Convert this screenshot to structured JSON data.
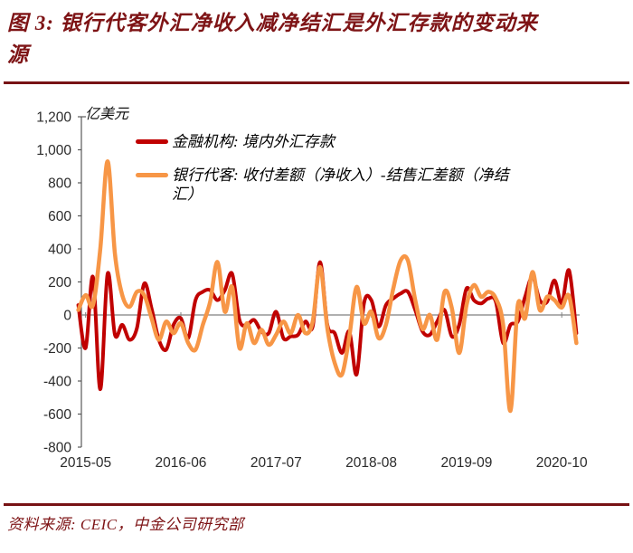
{
  "header": {
    "title": "图 3: 银行代客外汇净收入减净结汇是外汇存款的变动来源"
  },
  "footer": {
    "source": "资料来源: CEIC，中金公司研究部"
  },
  "chart_data": {
    "type": "line",
    "unit_label": "亿美元",
    "ylim": [
      -800,
      1200
    ],
    "y_tick_step": 200,
    "grid": "zero-line-only",
    "legend_position": "top-left-inside",
    "x_tick_labels": [
      "2015-05",
      "2016-06",
      "2017-07",
      "2018-08",
      "2019-09",
      "2020-10"
    ],
    "x": [
      "2015-04",
      "2015-05",
      "2015-06",
      "2015-07",
      "2015-08",
      "2015-09",
      "2015-10",
      "2015-11",
      "2015-12",
      "2016-01",
      "2016-02",
      "2016-03",
      "2016-04",
      "2016-05",
      "2016-06",
      "2016-07",
      "2016-08",
      "2016-09",
      "2016-10",
      "2016-11",
      "2016-12",
      "2017-01",
      "2017-02",
      "2017-03",
      "2017-04",
      "2017-05",
      "2017-06",
      "2017-07",
      "2017-08",
      "2017-09",
      "2017-10",
      "2017-11",
      "2017-12",
      "2018-01",
      "2018-02",
      "2018-03",
      "2018-04",
      "2018-05",
      "2018-06",
      "2018-07",
      "2018-08",
      "2018-09",
      "2018-10",
      "2018-11",
      "2018-12",
      "2019-01",
      "2019-02",
      "2019-03",
      "2019-04",
      "2019-05",
      "2019-06",
      "2019-07",
      "2019-08",
      "2019-09",
      "2019-10",
      "2019-11",
      "2019-12",
      "2020-01",
      "2020-02",
      "2020-03",
      "2020-04",
      "2020-05",
      "2020-06",
      "2020-07",
      "2020-08",
      "2020-09",
      "2020-10",
      "2020-11",
      "2020-12"
    ],
    "series": [
      {
        "name": "金融机构: 境内外汇存款",
        "color": "#C00000",
        "values": [
          60,
          -200,
          230,
          -450,
          250,
          -120,
          -60,
          -150,
          -80,
          190,
          40,
          -150,
          -210,
          -60,
          -20,
          -140,
          90,
          140,
          150,
          90,
          150,
          250,
          -30,
          -60,
          -30,
          -100,
          -110,
          20,
          -140,
          -130,
          -120,
          -40,
          -70,
          320,
          -60,
          -110,
          -230,
          -100,
          -360,
          70,
          90,
          -70,
          60,
          100,
          130,
          140,
          30,
          -100,
          -120,
          -40,
          30,
          -130,
          -60,
          160,
          90,
          70,
          100,
          80,
          -170,
          -60,
          -40,
          110,
          230,
          90,
          80,
          210,
          70,
          270,
          -110
        ]
      },
      {
        "name": "银行代客: 收付差额（净收入）-结售汇差额（净结汇）",
        "color": "#F79646",
        "values": [
          30,
          120,
          60,
          400,
          930,
          370,
          120,
          50,
          140,
          120,
          -20,
          -150,
          -40,
          -110,
          -50,
          -170,
          -210,
          -60,
          80,
          320,
          20,
          170,
          -200,
          -50,
          -170,
          -90,
          -180,
          -120,
          -40,
          -110,
          0,
          -110,
          -40,
          290,
          -80,
          -290,
          -360,
          -130,
          170,
          -50,
          20,
          -140,
          -60,
          160,
          330,
          330,
          90,
          -85,
          0,
          -150,
          140,
          40,
          -230,
          60,
          180,
          110,
          140,
          100,
          -60,
          -580,
          60,
          -20,
          260,
          30,
          110,
          90,
          45,
          115,
          -170
        ]
      }
    ],
    "axis_colors": {
      "axis_line": "#595959",
      "zero_line": "#7F7F7F",
      "tick_label": "#2B2B2B"
    }
  }
}
